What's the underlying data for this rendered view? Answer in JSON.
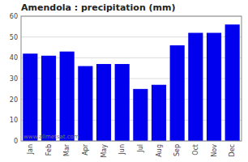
{
  "chart_data": {
    "type": "bar",
    "title": "Amendola : precipitation (mm)",
    "categories": [
      "Jan",
      "Feb",
      "Mar",
      "Apr",
      "May",
      "Jun",
      "Jul",
      "Aug",
      "Sep",
      "Oct",
      "Nov",
      "Dec"
    ],
    "values": [
      42,
      41,
      43,
      36,
      37,
      37,
      25,
      27,
      46,
      52,
      52,
      56
    ],
    "color": "#0000ee",
    "ylim": [
      0,
      60
    ],
    "yticks": [
      0,
      10,
      20,
      30,
      40,
      50,
      60
    ],
    "grid": true,
    "annotations": [
      "www.allmetsat.com"
    ]
  }
}
